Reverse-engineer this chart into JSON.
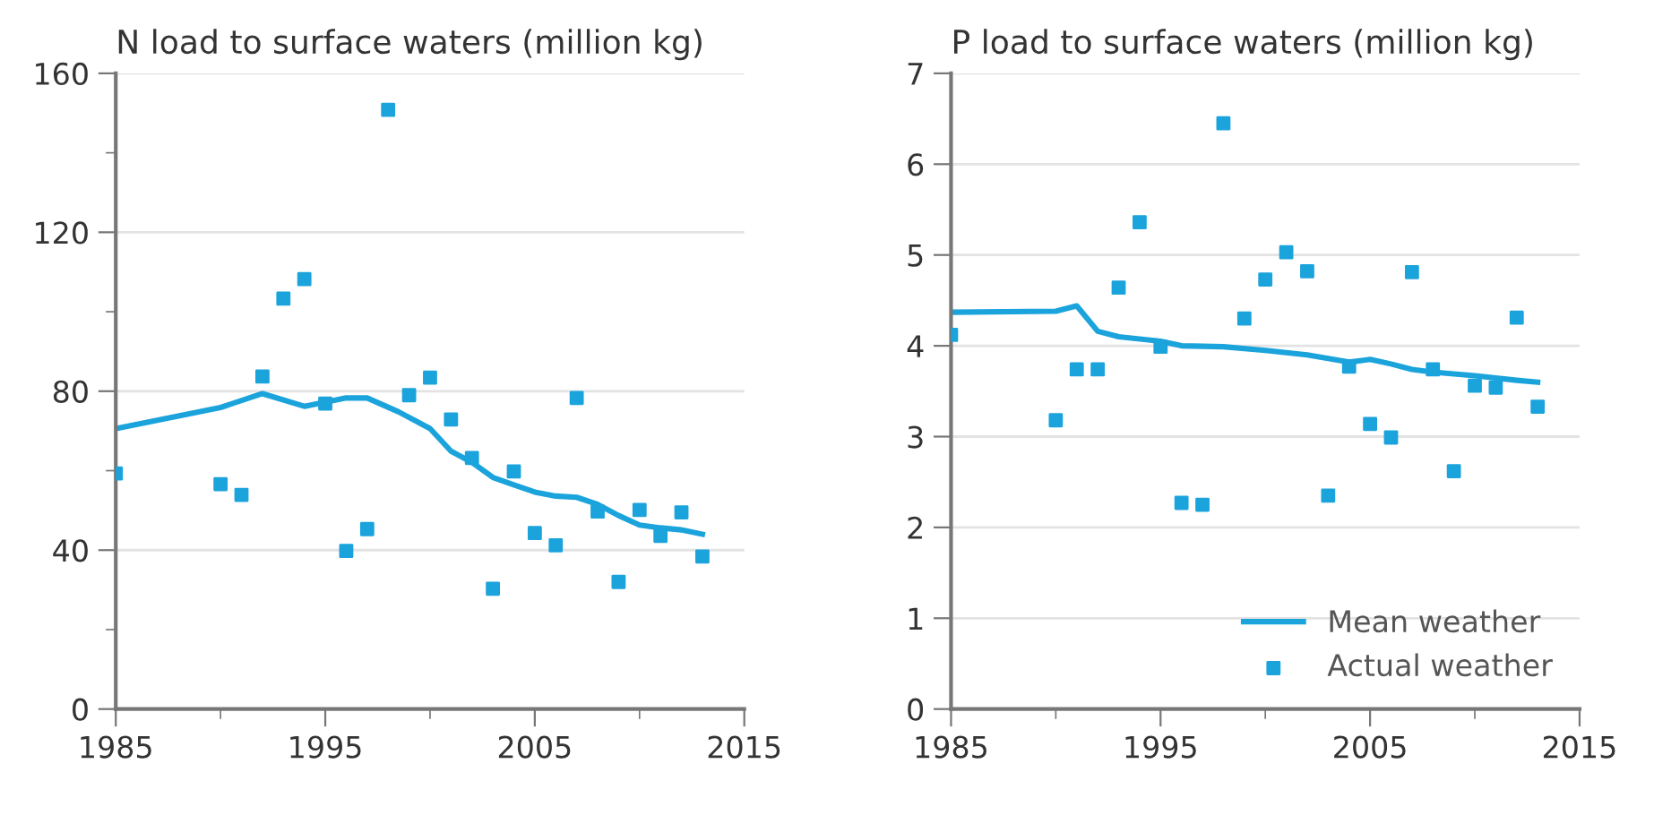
{
  "chart_data": [
    {
      "type": "scatter",
      "title": "N load to surface waters (million kg)",
      "xlim": [
        1985,
        2015
      ],
      "xticks": [
        1985,
        {
          "value": 1990,
          "label": null
        },
        1995,
        {
          "value": 2000,
          "label": null
        },
        2005,
        {
          "value": 2010,
          "label": null
        },
        2015
      ],
      "ylim": [
        0,
        160
      ],
      "yticks": [
        0,
        {
          "value": 20,
          "label": null
        },
        40,
        {
          "value": 60,
          "label": null
        },
        80,
        {
          "value": 100,
          "label": null
        },
        120,
        {
          "value": 140,
          "label": null
        },
        160
      ],
      "grid": "y",
      "legend": false,
      "series": [
        {
          "type": "line",
          "color": "#1ba3dc",
          "marker": "none",
          "line_style": "solid",
          "x": [
            1985,
            1990,
            1992,
            1994,
            1996,
            1997,
            1998.5,
            2000,
            2001,
            2002,
            2003,
            2004,
            2005,
            2006,
            2007,
            2008,
            2009,
            2010,
            2011,
            2012,
            2013
          ],
          "values": [
            70.6,
            75.9,
            79.4,
            76.2,
            78.3,
            78.3,
            74.8,
            70.6,
            64.9,
            62.1,
            58.3,
            56.4,
            54.6,
            53.6,
            53.3,
            51.5,
            48.7,
            46.3,
            45.6,
            45.1,
            44.0
          ]
        },
        {
          "color": "#1ba3dc",
          "marker": "square",
          "x": [
            1985,
            1990,
            1991,
            1992,
            1993,
            1994,
            1995,
            1996,
            1997,
            1998,
            1999,
            2000,
            2001,
            2002,
            2003,
            2004,
            2005,
            2006,
            2007,
            2008,
            2009,
            2010,
            2011,
            2012,
            2013
          ],
          "values": [
            59.3,
            56.6,
            53.9,
            83.7,
            103.3,
            108.2,
            76.9,
            39.8,
            45.3,
            150.8,
            79.0,
            83.4,
            72.9,
            63.2,
            30.3,
            59.8,
            44.3,
            41.2,
            78.3,
            49.7,
            32.0,
            50.1,
            43.6,
            49.5,
            38.4
          ]
        }
      ]
    },
    {
      "type": "scatter",
      "title": "P load to surface waters (million kg)",
      "xlim": [
        1985,
        2015
      ],
      "xticks": [
        1985,
        {
          "value": 1990,
          "label": null
        },
        1995,
        {
          "value": 2000,
          "label": null
        },
        2005,
        {
          "value": 2010,
          "label": null
        },
        2015
      ],
      "ylim": [
        0,
        7
      ],
      "yticks": [
        0,
        1,
        2,
        3,
        4,
        5,
        6,
        7
      ],
      "grid": "y",
      "legend": "bottom right",
      "series": [
        {
          "name": "Mean weather",
          "type": "line",
          "color": "#1ba3dc",
          "marker": "none",
          "line_style": "solid",
          "x": [
            1985,
            1990,
            1991,
            1992,
            1993,
            1995,
            1996,
            1998,
            2000,
            2002,
            2004,
            2005,
            2006,
            2007,
            2008,
            2010,
            2012,
            2013
          ],
          "values": [
            4.37,
            4.38,
            4.44,
            4.16,
            4.1,
            4.05,
            4.0,
            3.99,
            3.95,
            3.9,
            3.82,
            3.85,
            3.8,
            3.74,
            3.71,
            3.67,
            3.62,
            3.6
          ]
        },
        {
          "name": "Actual weather",
          "color": "#1ba3dc",
          "marker": "square",
          "x": [
            1985,
            1990,
            1991,
            1992,
            1993,
            1994,
            1995,
            1996,
            1997,
            1998,
            1999,
            2000,
            2001,
            2002,
            2003,
            2004,
            2005,
            2006,
            2007,
            2008,
            2009,
            2010,
            2011,
            2012,
            2013
          ],
          "values": [
            4.12,
            3.18,
            3.74,
            3.74,
            4.64,
            5.36,
            3.99,
            2.27,
            2.25,
            6.45,
            4.3,
            4.73,
            5.03,
            4.82,
            2.35,
            3.77,
            3.14,
            2.99,
            4.81,
            3.74,
            2.62,
            3.56,
            3.54,
            4.31,
            3.33
          ]
        }
      ]
    }
  ]
}
